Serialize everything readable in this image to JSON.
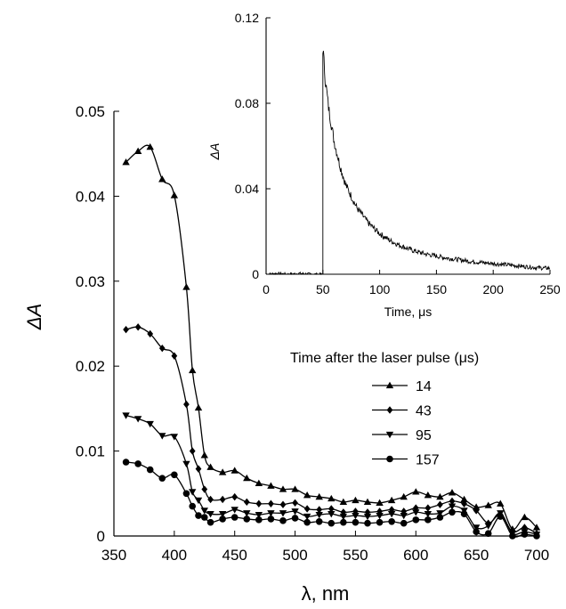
{
  "chart_data": [
    {
      "type": "line",
      "xlabel": "λ, nm",
      "ylabel": "ΔA",
      "xlim": [
        350,
        700
      ],
      "ylim": [
        0,
        0.05
      ],
      "xticks": [
        "350",
        "400",
        "450",
        "500",
        "550",
        "600",
        "650",
        "700"
      ],
      "yticks": [
        "0",
        "0.01",
        "0.02",
        "0.03",
        "0.04",
        "0.05"
      ],
      "legend_title": "Time after the laser pulse (μs)",
      "legend_position": "center-right",
      "x": [
        360,
        370,
        380,
        390,
        400,
        410,
        415,
        420,
        425,
        430,
        440,
        450,
        460,
        470,
        480,
        490,
        500,
        510,
        520,
        530,
        540,
        550,
        560,
        570,
        580,
        590,
        600,
        610,
        620,
        630,
        640,
        650,
        660,
        670,
        680,
        690,
        700
      ],
      "series": [
        {
          "name": "14",
          "marker": "triangle-up",
          "values": [
            0.044,
            0.0453,
            0.0458,
            0.042,
            0.0401,
            0.0293,
            0.0195,
            0.0151,
            0.0095,
            0.0081,
            0.0075,
            0.0077,
            0.0068,
            0.0062,
            0.0059,
            0.0055,
            0.0055,
            0.0048,
            0.0046,
            0.0044,
            0.004,
            0.0042,
            0.004,
            0.0039,
            0.0042,
            0.0046,
            0.0052,
            0.0048,
            0.0046,
            0.0051,
            0.0043,
            0.0034,
            0.0036,
            0.0038,
            0.0008,
            0.0022,
            0.001
          ]
        },
        {
          "name": "43",
          "marker": "diamond",
          "values": [
            0.0243,
            0.0246,
            0.0238,
            0.0221,
            0.0212,
            0.0155,
            0.01,
            0.0079,
            0.0055,
            0.0043,
            0.0043,
            0.0046,
            0.004,
            0.0038,
            0.0038,
            0.0037,
            0.0039,
            0.0032,
            0.0031,
            0.0032,
            0.0028,
            0.0029,
            0.0028,
            0.0029,
            0.0031,
            0.0029,
            0.0033,
            0.0033,
            0.0037,
            0.0041,
            0.0038,
            0.003,
            0.0015,
            0.0025,
            0.0005,
            0.001,
            0.0003
          ]
        },
        {
          "name": "95",
          "marker": "triangle-down",
          "values": [
            0.0142,
            0.0138,
            0.0132,
            0.0118,
            0.0117,
            0.0085,
            0.0052,
            0.0042,
            0.003,
            0.0026,
            0.0026,
            0.0031,
            0.0027,
            0.0025,
            0.0027,
            0.0027,
            0.0029,
            0.0023,
            0.0025,
            0.0026,
            0.0023,
            0.0024,
            0.0023,
            0.0024,
            0.0026,
            0.0024,
            0.0028,
            0.0026,
            0.0027,
            0.0035,
            0.003,
            0.001,
            0.0012,
            0.0027,
            0.0003,
            0.0005,
            0.0002
          ]
        },
        {
          "name": "157",
          "marker": "circle",
          "values": [
            0.0087,
            0.0085,
            0.0078,
            0.0068,
            0.0072,
            0.005,
            0.0035,
            0.0024,
            0.0022,
            0.0016,
            0.002,
            0.0022,
            0.002,
            0.0019,
            0.002,
            0.0018,
            0.0021,
            0.0016,
            0.0017,
            0.0015,
            0.0016,
            0.0016,
            0.0015,
            0.0016,
            0.0017,
            0.0015,
            0.0019,
            0.0019,
            0.0022,
            0.0028,
            0.0026,
            0.0005,
            0.0003,
            0.0023,
            0.0,
            0.0002,
            0.0
          ]
        }
      ]
    },
    {
      "type": "line",
      "xlabel": "Time, μs",
      "ylabel": "ΔA",
      "xlim": [
        0,
        250
      ],
      "ylim": [
        0,
        0.12
      ],
      "xticks": [
        "0",
        "50",
        "100",
        "150",
        "200",
        "250"
      ],
      "yticks": [
        "0",
        "0.04",
        "0.08",
        "0.12"
      ],
      "series": [
        {
          "name": "",
          "description_values": "baseline ~0 until t=50 μs, jumps to 0.106, then decays exponentially with noise",
          "x": [
            0,
            10,
            20,
            30,
            40,
            49.5,
            50,
            52,
            55,
            60,
            65,
            70,
            80,
            90,
            100,
            110,
            120,
            130,
            140,
            150,
            160,
            170,
            180,
            190,
            200,
            210,
            220,
            230,
            240,
            250
          ],
          "values": [
            0.0,
            0.0004,
            0.0,
            0.0004,
            0.0,
            0.0,
            0.106,
            0.092,
            0.078,
            0.062,
            0.051,
            0.042,
            0.031,
            0.024,
            0.019,
            0.0155,
            0.013,
            0.011,
            0.0095,
            0.0085,
            0.0075,
            0.0068,
            0.006,
            0.0055,
            0.005,
            0.0045,
            0.004,
            0.0035,
            0.003,
            0.0028
          ]
        }
      ]
    }
  ]
}
